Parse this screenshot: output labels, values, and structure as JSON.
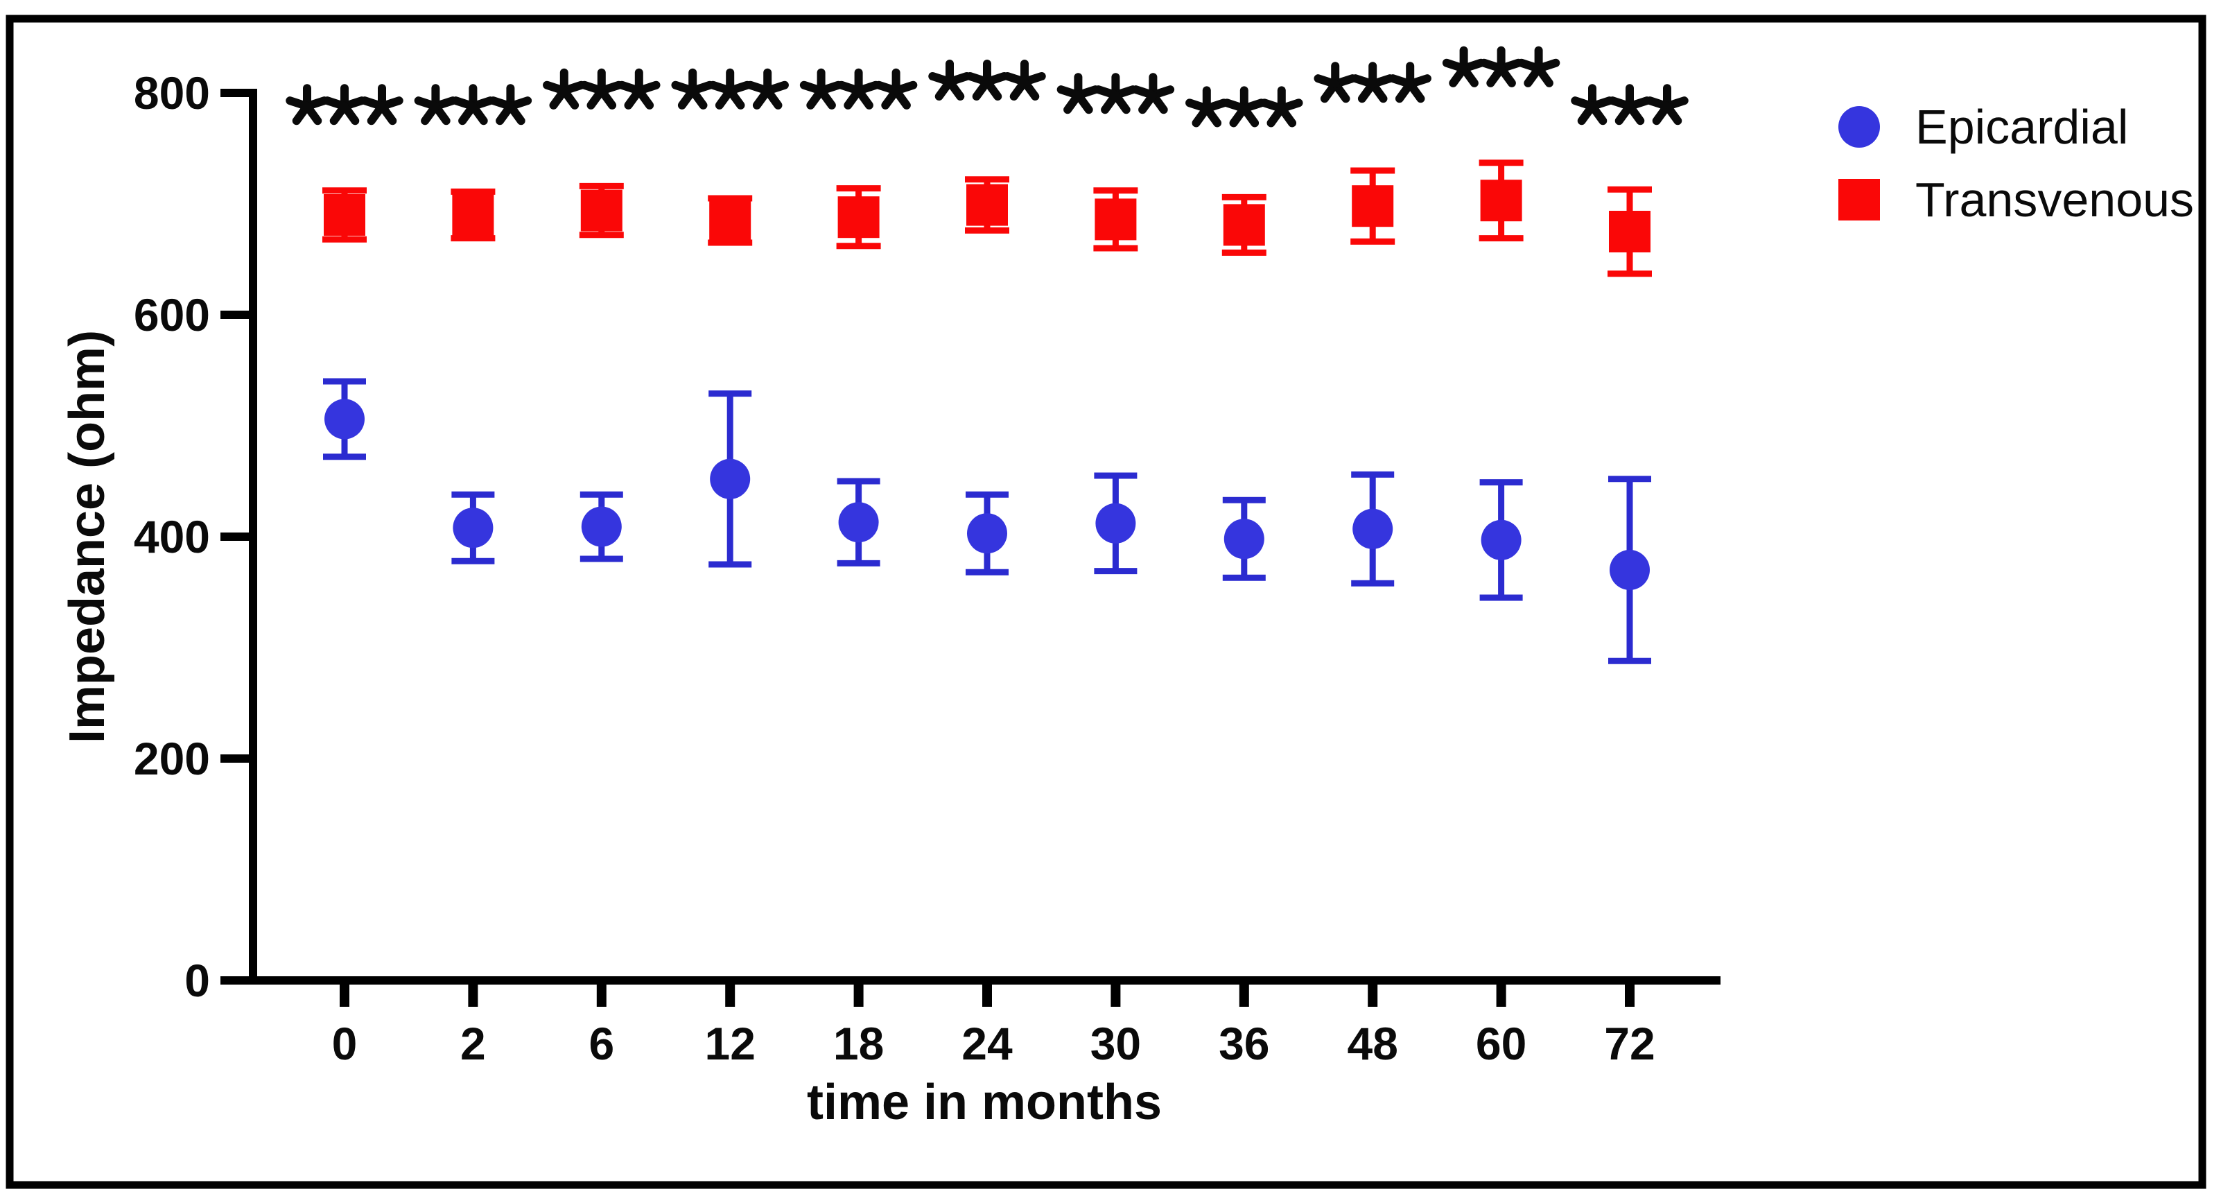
{
  "figure": {
    "background_color": "#ffffff",
    "border_color": "#000000"
  },
  "chart_data": {
    "type": "scatter",
    "title": "",
    "xlabel": "time in months",
    "ylabel": "Impedance (ohm)",
    "x_tick_labels": [
      "0",
      "2",
      "6",
      "12",
      "18",
      "24",
      "30",
      "36",
      "48",
      "60",
      "72"
    ],
    "y_tick_labels": [
      "0",
      "200",
      "400",
      "600",
      "800"
    ],
    "y_ticks": [
      0,
      200,
      400,
      600,
      800
    ],
    "ylim": [
      0,
      800
    ],
    "grid": "off",
    "legend_position": "top-right",
    "series": [
      {
        "name": "Epicardial",
        "marker": "circle",
        "color": "#3535DE",
        "error_color": "#2B2BD0",
        "values": [
          506,
          408,
          409,
          452,
          413,
          403,
          412,
          398,
          407,
          397,
          370
        ],
        "errors": [
          34,
          30,
          29,
          77,
          37,
          35,
          43,
          35,
          49,
          52,
          82
        ]
      },
      {
        "name": "Transvenous",
        "marker": "square",
        "color": "#FA0707",
        "error_color": "#FA0707",
        "values": [
          690,
          690,
          694,
          685,
          688,
          699,
          686,
          681,
          698,
          703,
          675
        ],
        "errors": [
          22,
          21,
          22,
          20,
          26,
          23,
          26,
          25,
          32,
          34,
          38
        ]
      }
    ],
    "significance": {
      "label": "***",
      "per_point_y": [
        788,
        788,
        802,
        802,
        802,
        810,
        798,
        786,
        808,
        822,
        788
      ],
      "color": "#0a0a0a"
    }
  }
}
